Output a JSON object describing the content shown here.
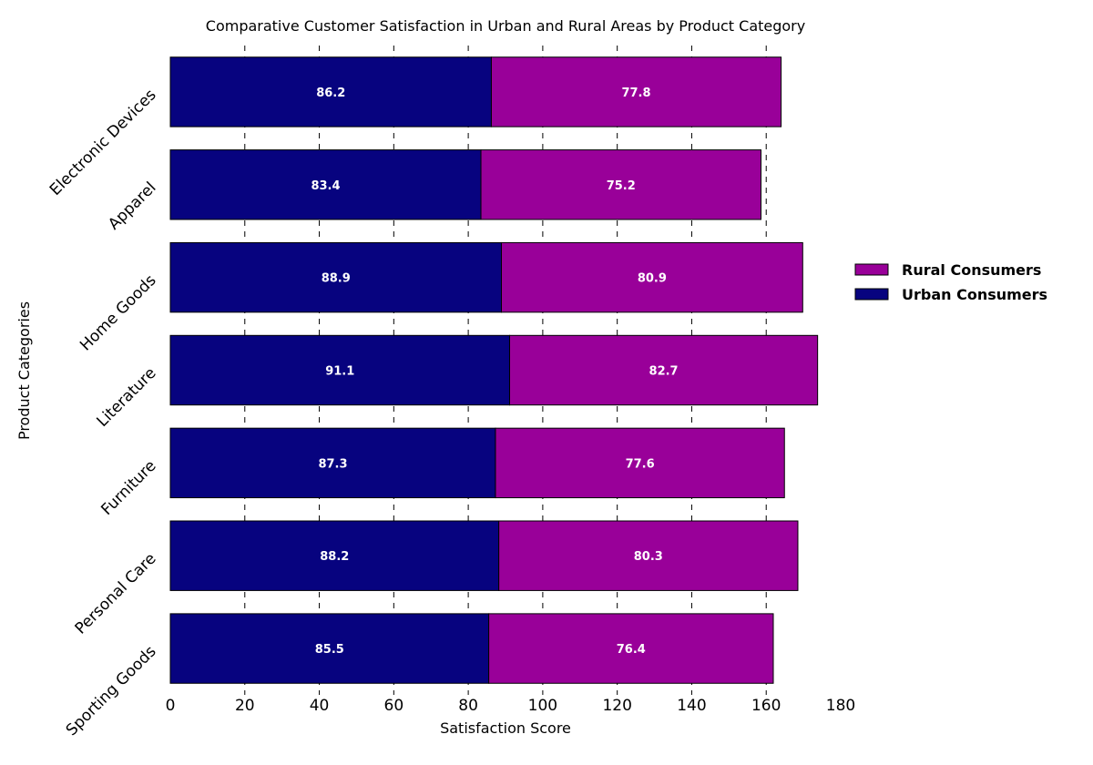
{
  "chart_data": {
    "type": "bar",
    "orientation": "horizontal",
    "stacked": true,
    "title": "Comparative Customer Satisfaction in Urban and Rural Areas by Product Category",
    "xlabel": "Satisfaction Score",
    "ylabel": "Product Categories",
    "xlim": [
      0,
      180
    ],
    "xticks": [
      0,
      20,
      40,
      60,
      80,
      100,
      120,
      140,
      160,
      180
    ],
    "grid": true,
    "legend_position": "right",
    "categories": [
      "Electronic Devices",
      "Apparel",
      "Home Goods",
      "Literature",
      "Furniture",
      "Personal Care",
      "Sporting Goods"
    ],
    "series": [
      {
        "name": "Urban Consumers",
        "color": "#07037f",
        "values": [
          86.2,
          83.4,
          88.9,
          91.1,
          87.3,
          88.2,
          85.5
        ]
      },
      {
        "name": "Rural Consumers",
        "color": "#990099",
        "values": [
          77.8,
          75.2,
          80.9,
          82.7,
          77.6,
          80.3,
          76.4
        ]
      }
    ],
    "legend_order": [
      "Rural Consumers",
      "Urban Consumers"
    ]
  }
}
